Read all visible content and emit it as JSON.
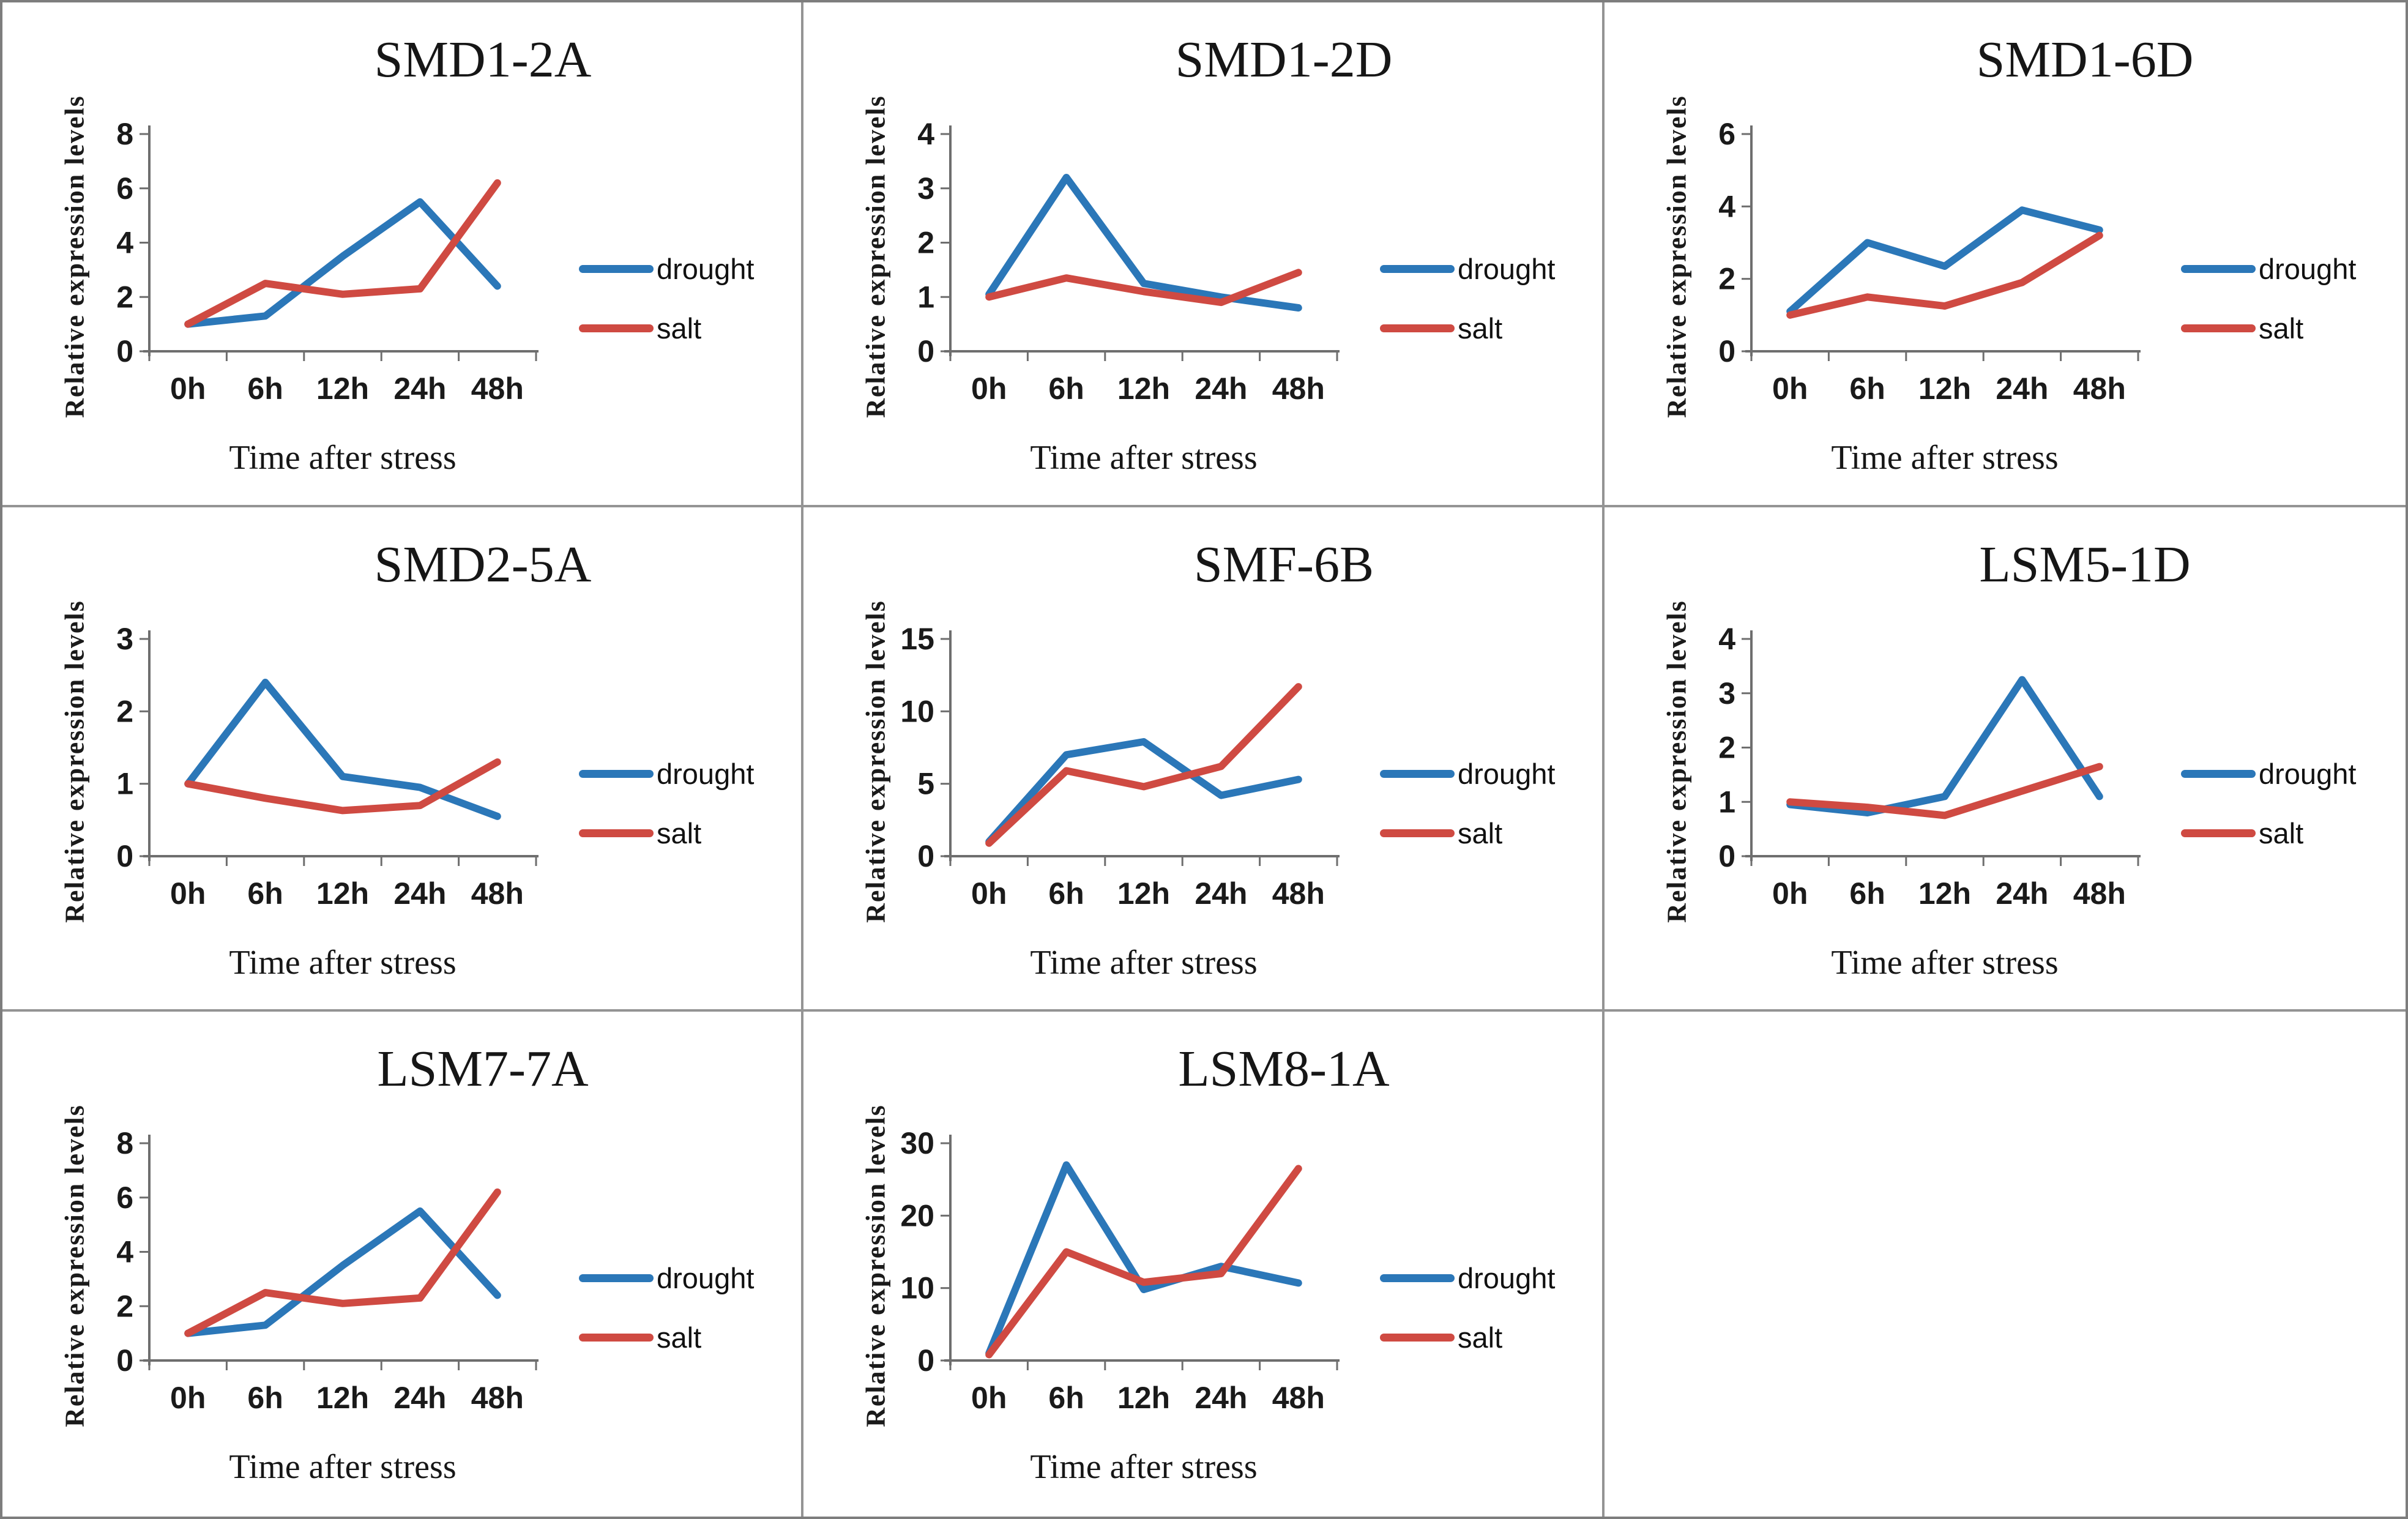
{
  "figure": {
    "background": "#ffffff",
    "outer_border_color": "#7d7d7d",
    "cell_border_color": "#949494",
    "axis_color": "#6e6e6e",
    "tick_label_color": "#1a1a1a",
    "text_color": "#161616",
    "series_colors": {
      "drought": "#2b77b8",
      "salt": "#cf4a42"
    }
  },
  "chart_data": [
    {
      "type": "line",
      "title": "SMD1-2A",
      "xlabel": "Time after stress",
      "ylabel": "Relative expression levels",
      "categories": [
        "0h",
        "6h",
        "12h",
        "24h",
        "48h"
      ],
      "ylim": [
        0,
        8
      ],
      "yticks": [
        0,
        2,
        4,
        6,
        8
      ],
      "grid": false,
      "legend_position": "right",
      "series": [
        {
          "name": "drought",
          "color": "#2b77b8",
          "values": [
            1.0,
            1.3,
            3.5,
            5.5,
            2.4
          ]
        },
        {
          "name": "salt",
          "color": "#cf4a42",
          "values": [
            1.0,
            2.5,
            2.1,
            2.3,
            6.2
          ]
        }
      ]
    },
    {
      "type": "line",
      "title": "SMD1-2D",
      "xlabel": "Time after stress",
      "ylabel": "Relative expression levels",
      "categories": [
        "0h",
        "6h",
        "12h",
        "24h",
        "48h"
      ],
      "ylim": [
        0,
        4
      ],
      "yticks": [
        0,
        1,
        2,
        3,
        4
      ],
      "grid": false,
      "legend_position": "right",
      "series": [
        {
          "name": "drought",
          "color": "#2b77b8",
          "values": [
            1.05,
            3.2,
            1.25,
            1.0,
            0.8
          ]
        },
        {
          "name": "salt",
          "color": "#cf4a42",
          "values": [
            1.0,
            1.35,
            1.1,
            0.9,
            1.45
          ]
        }
      ]
    },
    {
      "type": "line",
      "title": "SMD1-6D",
      "xlabel": "Time after stress",
      "ylabel": "Relative expression levels",
      "categories": [
        "0h",
        "6h",
        "12h",
        "24h",
        "48h"
      ],
      "ylim": [
        0,
        6
      ],
      "yticks": [
        0,
        2,
        4,
        6
      ],
      "grid": false,
      "legend_position": "right",
      "series": [
        {
          "name": "drought",
          "color": "#2b77b8",
          "values": [
            1.1,
            3.0,
            2.35,
            3.9,
            3.35
          ]
        },
        {
          "name": "salt",
          "color": "#cf4a42",
          "values": [
            1.0,
            1.5,
            1.25,
            1.9,
            3.2
          ]
        }
      ]
    },
    {
      "type": "line",
      "title": "SMD2-5A",
      "xlabel": "Time after stress",
      "ylabel": "Relative expression levels",
      "categories": [
        "0h",
        "6h",
        "12h",
        "24h",
        "48h"
      ],
      "ylim": [
        0,
        3
      ],
      "yticks": [
        0,
        1,
        2,
        3
      ],
      "grid": false,
      "legend_position": "right",
      "series": [
        {
          "name": "drought",
          "color": "#2b77b8",
          "values": [
            1.0,
            2.4,
            1.1,
            0.95,
            0.55
          ]
        },
        {
          "name": "salt",
          "color": "#cf4a42",
          "values": [
            1.0,
            0.8,
            0.63,
            0.7,
            1.3
          ]
        }
      ]
    },
    {
      "type": "line",
      "title": "SMF-6B",
      "xlabel": "Time after stress",
      "ylabel": "Relative expression levels",
      "categories": [
        "0h",
        "6h",
        "12h",
        "24h",
        "48h"
      ],
      "ylim": [
        0,
        15
      ],
      "yticks": [
        0,
        5,
        10,
        15
      ],
      "grid": false,
      "legend_position": "right",
      "series": [
        {
          "name": "drought",
          "color": "#2b77b8",
          "values": [
            1.0,
            7.0,
            7.9,
            4.2,
            5.3
          ]
        },
        {
          "name": "salt",
          "color": "#cf4a42",
          "values": [
            0.9,
            5.9,
            4.8,
            6.2,
            11.7
          ]
        }
      ]
    },
    {
      "type": "line",
      "title": "LSM5-1D",
      "xlabel": "Time after stress",
      "ylabel": "Relative expression levels",
      "categories": [
        "0h",
        "6h",
        "12h",
        "24h",
        "48h"
      ],
      "ylim": [
        0,
        4
      ],
      "yticks": [
        0,
        1,
        2,
        3,
        4
      ],
      "grid": false,
      "legend_position": "right",
      "series": [
        {
          "name": "drought",
          "color": "#2b77b8",
          "values": [
            0.95,
            0.8,
            1.1,
            3.25,
            1.1
          ]
        },
        {
          "name": "salt",
          "color": "#cf4a42",
          "values": [
            1.0,
            0.9,
            0.75,
            1.2,
            1.65
          ]
        }
      ]
    },
    {
      "type": "line",
      "title": "LSM7-7A",
      "xlabel": "Time after stress",
      "ylabel": "Relative expression levels",
      "categories": [
        "0h",
        "6h",
        "12h",
        "24h",
        "48h"
      ],
      "ylim": [
        0,
        8
      ],
      "yticks": [
        0,
        2,
        4,
        6,
        8
      ],
      "grid": false,
      "legend_position": "right",
      "series": [
        {
          "name": "drought",
          "color": "#2b77b8",
          "values": [
            1.0,
            1.3,
            3.5,
            5.5,
            2.4
          ]
        },
        {
          "name": "salt",
          "color": "#cf4a42",
          "values": [
            1.0,
            2.5,
            2.1,
            2.3,
            6.2
          ]
        }
      ]
    },
    {
      "type": "line",
      "title": "LSM8-1A",
      "xlabel": "Time after stress",
      "ylabel": "Relative expression levels",
      "categories": [
        "0h",
        "6h",
        "12h",
        "24h",
        "48h"
      ],
      "ylim": [
        0,
        30
      ],
      "yticks": [
        0,
        10,
        20,
        30
      ],
      "grid": false,
      "legend_position": "right",
      "series": [
        {
          "name": "drought",
          "color": "#2b77b8",
          "values": [
            1.0,
            27.0,
            9.8,
            13.0,
            10.7
          ]
        },
        {
          "name": "salt",
          "color": "#cf4a42",
          "values": [
            0.8,
            15.0,
            10.8,
            12.0,
            26.5
          ]
        }
      ]
    }
  ]
}
